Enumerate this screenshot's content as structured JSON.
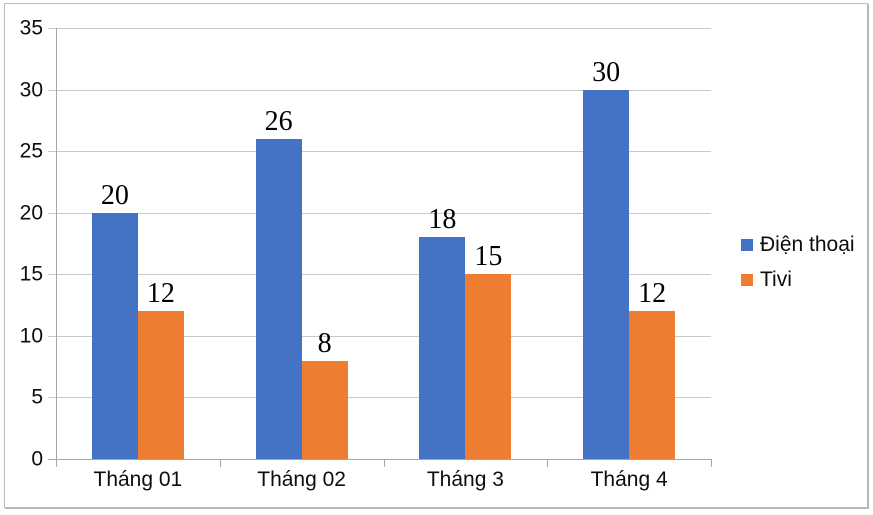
{
  "chart_data": {
    "type": "bar",
    "categories": [
      "Tháng 01",
      "Tháng 02",
      "Tháng 3",
      "Tháng 4"
    ],
    "series": [
      {
        "name": "Điện thoại",
        "color": "#4472C4",
        "values": [
          20,
          26,
          18,
          30
        ]
      },
      {
        "name": "Tivi",
        "color": "#ED7D31",
        "values": [
          12,
          8,
          15,
          12
        ]
      }
    ],
    "title": "",
    "xlabel": "",
    "ylabel": "",
    "ylim": [
      0,
      35
    ],
    "yticks": [
      0,
      5,
      10,
      15,
      20,
      25,
      30,
      35
    ],
    "grid": "horizontal",
    "legend_position": "right-middle",
    "data_labels": true,
    "colors": {
      "grid": "#C9C9C9",
      "axis": "#A6A6A6",
      "frame_border": "#BDBDBD",
      "label_text": "#000000"
    }
  }
}
